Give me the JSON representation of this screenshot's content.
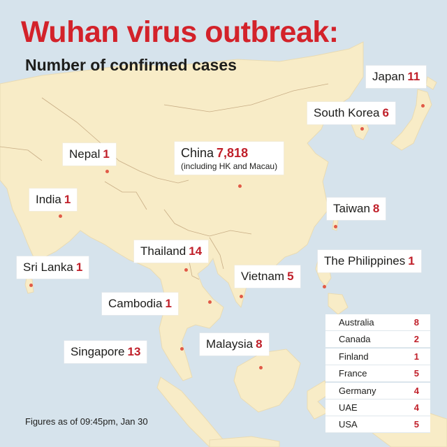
{
  "title": "Wuhan virus outbreak:",
  "subtitle": "Number of confirmed cases",
  "labels": {
    "japan": {
      "name": "Japan",
      "count": "11"
    },
    "south_korea": {
      "name": "South Korea",
      "count": "6"
    },
    "nepal": {
      "name": "Nepal",
      "count": "1"
    },
    "china": {
      "name": "China",
      "count": "7,818",
      "note": "(including HK and Macau)"
    },
    "india": {
      "name": "India",
      "count": "1"
    },
    "taiwan": {
      "name": "Taiwan",
      "count": "8"
    },
    "thailand": {
      "name": "Thailand",
      "count": "14"
    },
    "sri_lanka": {
      "name": "Sri Lanka",
      "count": "1"
    },
    "philippines": {
      "name": "The Philippines",
      "count": "1"
    },
    "vietnam": {
      "name": "Vietnam",
      "count": "5"
    },
    "cambodia": {
      "name": "Cambodia",
      "count": "1"
    },
    "malaysia": {
      "name": "Malaysia",
      "count": "8"
    },
    "singapore": {
      "name": "Singapore",
      "count": "13"
    }
  },
  "other_countries": [
    {
      "name": "Australia",
      "count": "8"
    },
    {
      "name": "Canada",
      "count": "2"
    },
    {
      "name": "Finland",
      "count": "1"
    },
    {
      "name": "France",
      "count": "5"
    },
    {
      "name": "Germany",
      "count": "4"
    },
    {
      "name": "UAE",
      "count": "4"
    },
    {
      "name": "USA",
      "count": "5"
    }
  ],
  "footnote": "Figures as of 09:45pm, Jan 30",
  "colors": {
    "accent": "#d3222a",
    "count": "#c0202a",
    "land": "#f8ecc7",
    "sea": "#d6e3ec",
    "border": "#c8ad85",
    "dot": "#e15a47"
  }
}
